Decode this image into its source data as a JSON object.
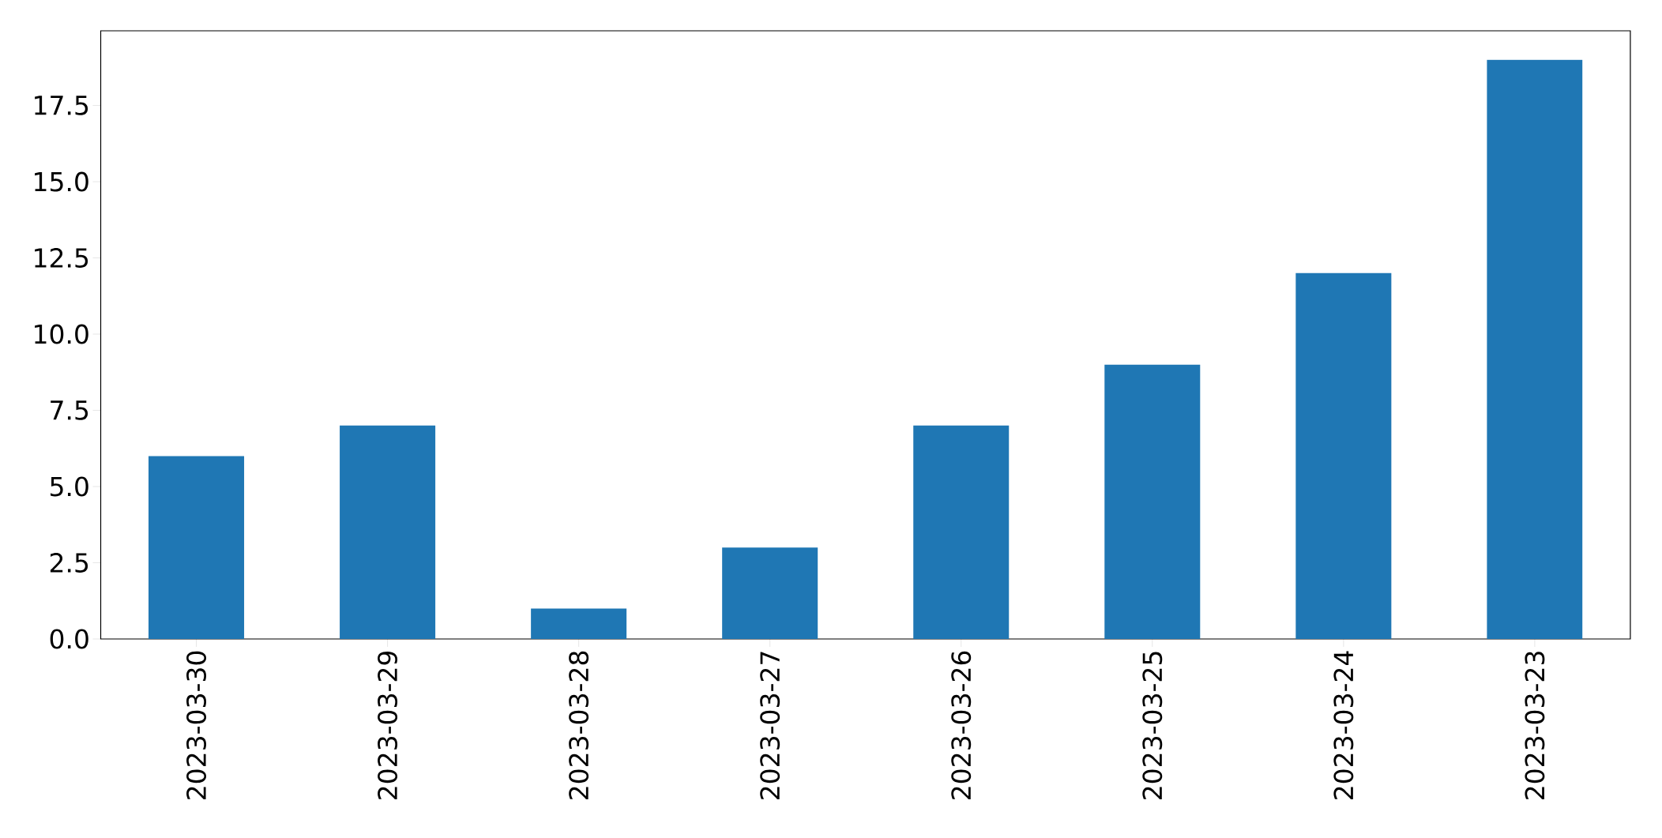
{
  "chart_data": {
    "type": "bar",
    "categories": [
      "2023-03-30",
      "2023-03-29",
      "2023-03-28",
      "2023-03-27",
      "2023-03-26",
      "2023-03-25",
      "2023-03-24",
      "2023-03-23"
    ],
    "values": [
      6,
      7,
      1,
      3,
      7,
      9,
      12,
      19
    ],
    "color": "#1f77b4",
    "ylim": [
      0,
      19.95
    ],
    "yticks": [
      {
        "value": 0,
        "label": "0.0"
      },
      {
        "value": 2.5,
        "label": "2.5"
      },
      {
        "value": 5,
        "label": "5.0"
      },
      {
        "value": 7.5,
        "label": "7.5"
      },
      {
        "value": 10,
        "label": "10.0"
      },
      {
        "value": 12.5,
        "label": "12.5"
      },
      {
        "value": 15,
        "label": "15.0"
      },
      {
        "value": 17.5,
        "label": "17.5"
      }
    ],
    "grid": false
  }
}
